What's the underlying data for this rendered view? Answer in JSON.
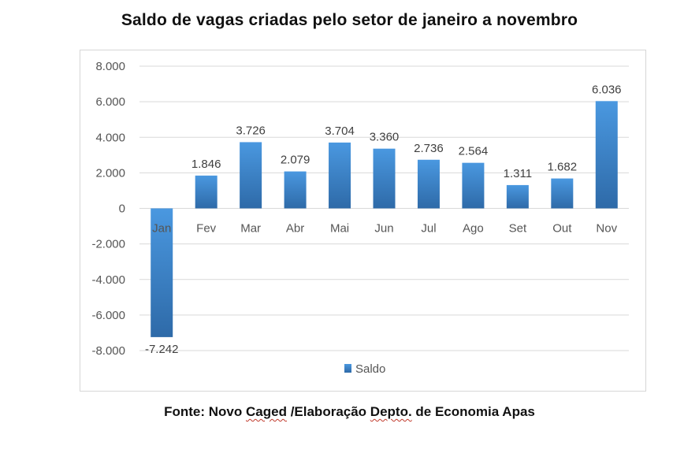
{
  "chart_data": {
    "type": "bar",
    "title": "Saldo de vagas criadas pelo setor de janeiro a novembro",
    "categories": [
      "Jan",
      "Fev",
      "Mar",
      "Abr",
      "Mai",
      "Jun",
      "Jul",
      "Ago",
      "Set",
      "Out",
      "Nov"
    ],
    "series": [
      {
        "name": "Saldo",
        "values": [
          -7242,
          1846,
          3726,
          2079,
          3704,
          3360,
          2736,
          2564,
          1311,
          1682,
          6036
        ]
      }
    ],
    "data_labels": [
      "-7.242",
      "1.846",
      "3.726",
      "2.079",
      "3.704",
      "3.360",
      "2.736",
      "2.564",
      "1.311",
      "1.682",
      "6.036"
    ],
    "yticks": [
      8000,
      6000,
      4000,
      2000,
      0,
      -2000,
      -4000,
      -6000,
      -8000
    ],
    "ytick_labels": [
      "8.000",
      "6.000",
      "4.000",
      "2.000",
      "0",
      "-2.000",
      "-4.000",
      "-6.000",
      "-8.000"
    ],
    "ylim": [
      -8000,
      8000
    ],
    "grid": true,
    "legend": "bottom",
    "colors": {
      "bar_top": "#4a98e0",
      "bar_bottom": "#2e6aa8",
      "grid": "#d9d9d9"
    }
  },
  "source": {
    "prefix": "Fonte: Novo ",
    "caged": "Caged",
    "middle": " /Elaboração ",
    "depto": "Depto.",
    "suffix": " de Economia Apas"
  }
}
